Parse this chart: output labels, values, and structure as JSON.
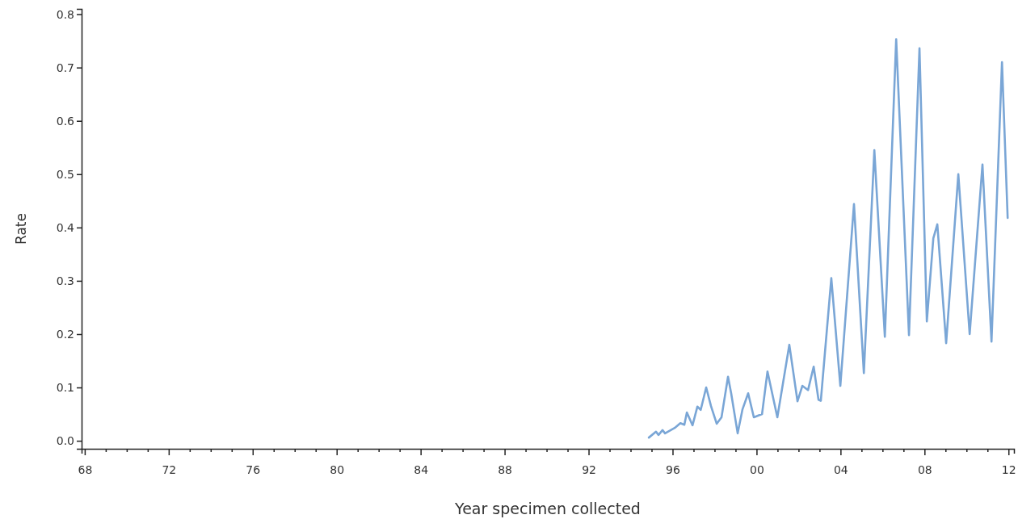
{
  "chart_data": {
    "type": "line",
    "xlabel": "Year specimen collected",
    "ylabel": "Rate",
    "xlim": [
      1967.85,
      2012.26
    ],
    "ylim": [
      -0.015,
      0.81
    ],
    "xticks": [
      {
        "value": 1968,
        "label": "68"
      },
      {
        "value": 1969,
        "label": null
      },
      {
        "value": 1970,
        "label": null
      },
      {
        "value": 1971,
        "label": null
      },
      {
        "value": 1972,
        "label": "72"
      },
      {
        "value": 1973,
        "label": null
      },
      {
        "value": 1974,
        "label": null
      },
      {
        "value": 1975,
        "label": null
      },
      {
        "value": 1976,
        "label": "76"
      },
      {
        "value": 1977,
        "label": null
      },
      {
        "value": 1978,
        "label": null
      },
      {
        "value": 1979,
        "label": null
      },
      {
        "value": 1980,
        "label": "80"
      },
      {
        "value": 1981,
        "label": null
      },
      {
        "value": 1982,
        "label": null
      },
      {
        "value": 1983,
        "label": null
      },
      {
        "value": 1984,
        "label": "84"
      },
      {
        "value": 1985,
        "label": null
      },
      {
        "value": 1986,
        "label": null
      },
      {
        "value": 1987,
        "label": null
      },
      {
        "value": 1988,
        "label": "88"
      },
      {
        "value": 1989,
        "label": null
      },
      {
        "value": 1990,
        "label": null
      },
      {
        "value": 1991,
        "label": null
      },
      {
        "value": 1992,
        "label": "92"
      },
      {
        "value": 1993,
        "label": null
      },
      {
        "value": 1994,
        "label": null
      },
      {
        "value": 1995,
        "label": null
      },
      {
        "value": 1996,
        "label": "96"
      },
      {
        "value": 1997,
        "label": null
      },
      {
        "value": 1998,
        "label": null
      },
      {
        "value": 1999,
        "label": null
      },
      {
        "value": 2000,
        "label": "00"
      },
      {
        "value": 2001,
        "label": null
      },
      {
        "value": 2002,
        "label": null
      },
      {
        "value": 2003,
        "label": null
      },
      {
        "value": 2004,
        "label": "04"
      },
      {
        "value": 2005,
        "label": null
      },
      {
        "value": 2006,
        "label": null
      },
      {
        "value": 2007,
        "label": null
      },
      {
        "value": 2008,
        "label": "08"
      },
      {
        "value": 2009,
        "label": null
      },
      {
        "value": 2010,
        "label": null
      },
      {
        "value": 2011,
        "label": null
      },
      {
        "value": 2012,
        "label": "12"
      }
    ],
    "yticks": [
      {
        "value": 0,
        "label": "0.0"
      },
      {
        "value": 0.1,
        "label": "0.1"
      },
      {
        "value": 0.2,
        "label": "0.2"
      },
      {
        "value": 0.3,
        "label": "0.3"
      },
      {
        "value": 0.4,
        "label": "0.4"
      },
      {
        "value": 0.5,
        "label": "0.5"
      },
      {
        "value": 0.6,
        "label": "0.6"
      },
      {
        "value": 0.7,
        "label": "0.7"
      },
      {
        "value": 0.8,
        "label": "0.8"
      }
    ],
    "x": [
      1994.87,
      1995.21,
      1995.33,
      1995.52,
      1995.64,
      1996.1,
      1996.37,
      1996.56,
      1996.68,
      1996.95,
      1997.18,
      1997.34,
      1997.6,
      1997.83,
      1998.1,
      1998.33,
      1998.64,
      1998.79,
      1999.1,
      1999.33,
      1999.6,
      1999.87,
      2000.26,
      2000.52,
      2000.99,
      2001.56,
      2001.95,
      2002.18,
      2002.45,
      2002.72,
      2002.95,
      2003.06,
      2003.56,
      2003.99,
      2004.64,
      2005.11,
      2005.61,
      2006.11,
      2006.65,
      2007.26,
      2007.76,
      2008.11,
      2008.42,
      2008.61,
      2009.03,
      2009.61,
      2010.15,
      2010.76,
      2011.19,
      2011.69,
      2011.96
    ],
    "series": [
      {
        "color": "#7aa6d6",
        "values": [
          0.006,
          0.017,
          0.011,
          0.02,
          0.014,
          0.024,
          0.033,
          0.03,
          0.053,
          0.029,
          0.064,
          0.058,
          0.1,
          0.065,
          0.032,
          0.044,
          0.12,
          0.089,
          0.014,
          0.059,
          0.089,
          0.044,
          0.05,
          0.13,
          0.044,
          0.18,
          0.074,
          0.103,
          0.095,
          0.139,
          0.077,
          0.075,
          0.305,
          0.103,
          0.444,
          0.127,
          0.545,
          0.195,
          0.753,
          0.198,
          0.736,
          0.224,
          0.38,
          0.406,
          0.183,
          0.5,
          0.2,
          0.518,
          0.186,
          0.71,
          0.418
        ]
      }
    ]
  }
}
